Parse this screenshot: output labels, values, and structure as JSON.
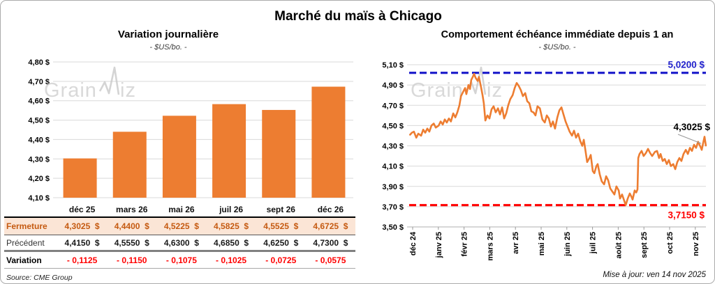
{
  "page": {
    "title": "Marché du maïs à Chicago",
    "source": "Source: CME Group",
    "updated": "Mise à jour: ven 14 nov 2025",
    "watermark": {
      "part1": "Grain",
      "part2": "iz"
    }
  },
  "colors": {
    "orange": "#ED7D31",
    "grid": "#D9D9D9",
    "axis": "#BFBFBF",
    "ref_blue": "#2222CC",
    "ref_red": "#FF0000",
    "fermeture_bg": "#FBE5D6",
    "fermeture_text": "#C55A11",
    "watermark_gray": "#C7C7C7"
  },
  "table": {
    "months": [
      "déc 25",
      "mars 26",
      "mai 26",
      "juil 26",
      "sept 26",
      "déc 26"
    ],
    "rows": [
      {
        "key": "fermeture",
        "label": "Fermeture",
        "cells": [
          "4,3025  $",
          "4,4400  $",
          "4,5225  $",
          "4,5825  $",
          "4,5525  $",
          "4,6725  $"
        ]
      },
      {
        "key": "precedent",
        "label": "Précédent",
        "cells": [
          "4,4150  $",
          "4,5550  $",
          "4,6300  $",
          "4,6850  $",
          "4,6250  $",
          "4,7300  $"
        ]
      },
      {
        "key": "variation",
        "label": "Variation",
        "cells": [
          "- 0,1125",
          "- 0,1150",
          "- 0,1075",
          "- 0,1025",
          "- 0,0725",
          "- 0,0575"
        ]
      }
    ]
  },
  "chart_data": [
    {
      "type": "bar",
      "title": "Variation journalière",
      "subtitle": "- $US/bo. -",
      "categories": [
        "déc 25",
        "mars 26",
        "mai 26",
        "juil 26",
        "sept 26",
        "déc 26"
      ],
      "values": [
        4.3025,
        4.44,
        4.5225,
        4.5825,
        4.5525,
        4.6725
      ],
      "ylim": [
        4.1,
        4.8
      ],
      "ytick_step": 0.1,
      "ytick_labels": [
        "4,80 $",
        "4,70 $",
        "4,60 $",
        "4,50 $",
        "4,40 $",
        "4,30 $",
        "4,20 $",
        "4,10 $"
      ],
      "bar_color": "#ED7D31",
      "grid": true
    },
    {
      "type": "line",
      "title": "Comportement échéance immédiate depuis 1 an",
      "subtitle": "- $US/bo. -",
      "ylim": [
        3.5,
        5.1
      ],
      "ytick_step": 0.2,
      "ytick_labels": [
        "5,10 $",
        "4,90 $",
        "4,70 $",
        "4,50 $",
        "4,30 $",
        "4,10 $",
        "3,90 $",
        "3,70 $",
        "3,50 $"
      ],
      "xtick_labels": [
        "déc 24",
        "janv 25",
        "févr 25",
        "mars 25",
        "avr 25",
        "mai 25",
        "juin 25",
        "juil 25",
        "août 25",
        "sept 25",
        "oct 25",
        "nov 25"
      ],
      "line_color": "#ED7D31",
      "grid": true,
      "ref_lines": [
        {
          "value": 5.02,
          "label": "5,0200 $",
          "color": "#2222CC",
          "style": "dashed",
          "label_pos": "above"
        },
        {
          "value": 3.715,
          "label": "3,7150 $",
          "color": "#FF0000",
          "style": "dashed",
          "label_pos": "below"
        }
      ],
      "last_point_label": "4,3025 $",
      "series": [
        {
          "name": "échéance immédiate",
          "points": [
            [
              -0.1,
              4.41
            ],
            [
              -0.03,
              4.43
            ],
            [
              0.05,
              4.44
            ],
            [
              0.14,
              4.38
            ],
            [
              0.22,
              4.42
            ],
            [
              0.33,
              4.4
            ],
            [
              0.41,
              4.46
            ],
            [
              0.49,
              4.43
            ],
            [
              0.57,
              4.47
            ],
            [
              0.65,
              4.44
            ],
            [
              0.73,
              4.5
            ],
            [
              0.82,
              4.52
            ],
            [
              0.9,
              4.48
            ],
            [
              1.01,
              4.5
            ],
            [
              1.09,
              4.54
            ],
            [
              1.17,
              4.51
            ],
            [
              1.25,
              4.56
            ],
            [
              1.33,
              4.53
            ],
            [
              1.41,
              4.57
            ],
            [
              1.49,
              4.54
            ],
            [
              1.58,
              4.62
            ],
            [
              1.66,
              4.58
            ],
            [
              1.74,
              4.63
            ],
            [
              1.82,
              4.7
            ],
            [
              1.88,
              4.79
            ],
            [
              1.96,
              4.83
            ],
            [
              2.04,
              4.87
            ],
            [
              2.09,
              4.81
            ],
            [
              2.17,
              4.9
            ],
            [
              2.23,
              4.86
            ],
            [
              2.28,
              4.95
            ],
            [
              2.34,
              4.98
            ],
            [
              2.39,
              5.01
            ],
            [
              2.45,
              4.97
            ],
            [
              2.53,
              4.94
            ],
            [
              2.58,
              4.98
            ],
            [
              2.66,
              4.88
            ],
            [
              2.72,
              4.8
            ],
            [
              2.77,
              4.72
            ],
            [
              2.83,
              4.55
            ],
            [
              2.91,
              4.6
            ],
            [
              2.99,
              4.57
            ],
            [
              3.07,
              4.66
            ],
            [
              3.15,
              4.69
            ],
            [
              3.23,
              4.63
            ],
            [
              3.32,
              4.67
            ],
            [
              3.4,
              4.61
            ],
            [
              3.48,
              4.68
            ],
            [
              3.56,
              4.57
            ],
            [
              3.64,
              4.62
            ],
            [
              3.72,
              4.7
            ],
            [
              3.8,
              4.76
            ],
            [
              3.89,
              4.8
            ],
            [
              3.97,
              4.87
            ],
            [
              4.05,
              4.92
            ],
            [
              4.13,
              4.89
            ],
            [
              4.21,
              4.85
            ],
            [
              4.29,
              4.79
            ],
            [
              4.38,
              4.82
            ],
            [
              4.46,
              4.74
            ],
            [
              4.54,
              4.72
            ],
            [
              4.62,
              4.64
            ],
            [
              4.7,
              4.63
            ],
            [
              4.78,
              4.6
            ],
            [
              4.86,
              4.69
            ],
            [
              4.95,
              4.67
            ],
            [
              5.05,
              4.56
            ],
            [
              5.14,
              4.53
            ],
            [
              5.22,
              4.6
            ],
            [
              5.3,
              4.57
            ],
            [
              5.38,
              4.49
            ],
            [
              5.46,
              4.54
            ],
            [
              5.54,
              4.47
            ],
            [
              5.63,
              4.58
            ],
            [
              5.71,
              4.65
            ],
            [
              5.79,
              4.68
            ],
            [
              5.87,
              4.61
            ],
            [
              5.95,
              4.54
            ],
            [
              6.03,
              4.49
            ],
            [
              6.11,
              4.44
            ],
            [
              6.2,
              4.4
            ],
            [
              6.28,
              4.45
            ],
            [
              6.36,
              4.38
            ],
            [
              6.44,
              4.42
            ],
            [
              6.52,
              4.35
            ],
            [
              6.6,
              4.3
            ],
            [
              6.66,
              4.36
            ],
            [
              6.71,
              4.28
            ],
            [
              6.79,
              4.14
            ],
            [
              6.88,
              4.18
            ],
            [
              6.93,
              4.21
            ],
            [
              7.01,
              4.05
            ],
            [
              7.07,
              4.03
            ],
            [
              7.15,
              4.1
            ],
            [
              7.2,
              4.12
            ],
            [
              7.28,
              4.02
            ],
            [
              7.36,
              3.95
            ],
            [
              7.45,
              3.92
            ],
            [
              7.53,
              4.0
            ],
            [
              7.61,
              3.96
            ],
            [
              7.69,
              3.88
            ],
            [
              7.77,
              3.85
            ],
            [
              7.85,
              3.82
            ],
            [
              7.93,
              3.9
            ],
            [
              8.02,
              3.86
            ],
            [
              8.07,
              3.78
            ],
            [
              8.15,
              3.82
            ],
            [
              8.23,
              3.76
            ],
            [
              8.29,
              3.715
            ],
            [
              8.37,
              3.78
            ],
            [
              8.45,
              3.83
            ],
            [
              8.51,
              3.8
            ],
            [
              8.56,
              3.77
            ],
            [
              8.64,
              3.86
            ],
            [
              8.7,
              3.84
            ],
            [
              8.75,
              3.87
            ],
            [
              8.78,
              4.18
            ],
            [
              8.83,
              4.22
            ],
            [
              8.91,
              4.25
            ],
            [
              8.99,
              4.2
            ],
            [
              9.08,
              4.23
            ],
            [
              9.16,
              4.27
            ],
            [
              9.24,
              4.23
            ],
            [
              9.32,
              4.2
            ],
            [
              9.43,
              4.24
            ],
            [
              9.51,
              4.25
            ],
            [
              9.59,
              4.18
            ],
            [
              9.65,
              4.22
            ],
            [
              9.73,
              4.15
            ],
            [
              9.81,
              4.17
            ],
            [
              9.89,
              4.12
            ],
            [
              9.97,
              4.16
            ],
            [
              10.05,
              4.1
            ],
            [
              10.14,
              4.12
            ],
            [
              10.22,
              4.07
            ],
            [
              10.3,
              4.14
            ],
            [
              10.38,
              4.18
            ],
            [
              10.46,
              4.15
            ],
            [
              10.54,
              4.22
            ],
            [
              10.63,
              4.26
            ],
            [
              10.71,
              4.22
            ],
            [
              10.79,
              4.28
            ],
            [
              10.87,
              4.25
            ],
            [
              10.95,
              4.31
            ],
            [
              11.03,
              4.28
            ],
            [
              11.11,
              4.34
            ],
            [
              11.2,
              4.29
            ],
            [
              11.25,
              4.26
            ],
            [
              11.3,
              4.32
            ],
            [
              11.36,
              4.39
            ],
            [
              11.41,
              4.3025
            ]
          ]
        }
      ]
    }
  ]
}
